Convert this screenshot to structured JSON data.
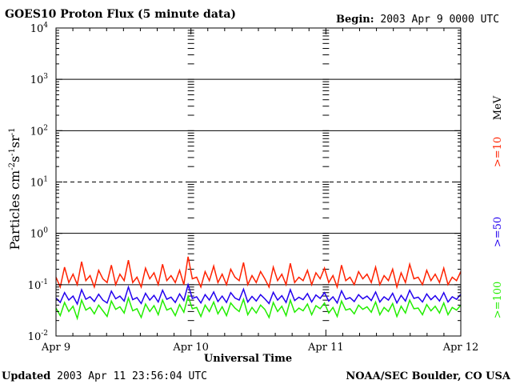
{
  "header": {
    "title_bold": "GOES10",
    "title_rest": " Proton Flux (5 minute data)",
    "begin_label": "Begin:",
    "begin_value": " 2003 Apr 9 0000 UTC"
  },
  "footer": {
    "updated_label": "Updated",
    "updated_value": " 2003 Apr 11 23:56:04 UTC",
    "credit": "NOAA/SEC Boulder, CO USA"
  },
  "legend": {
    "unit": "MeV",
    "channels": [
      {
        "label": ">=10",
        "color": "#ff2200"
      },
      {
        "label": ">=50",
        "color": "#2200ee"
      },
      {
        "label": ">=100",
        "color": "#22ee00"
      }
    ]
  },
  "chart_data": {
    "type": "line",
    "title": "GOES10 Proton Flux (5 minute data)",
    "xlabel": "Universal Time",
    "ylabel": "Particles cm-2s-1sr-1",
    "y_scale": "log",
    "ylim": [
      0.01,
      10000
    ],
    "xlim": [
      "2003-04-09",
      "2003-04-12"
    ],
    "x_ticks": [
      "Apr 9",
      "Apr 10",
      "Apr 11",
      "Apr 12"
    ],
    "y_ticks": [
      {
        "base": "10",
        "exp": "-2"
      },
      {
        "base": "10",
        "exp": "-1"
      },
      {
        "base": "10",
        "exp": "0"
      },
      {
        "base": "10",
        "exp": "1"
      },
      {
        "base": "10",
        "exp": "2"
      },
      {
        "base": "10",
        "exp": "3"
      },
      {
        "base": "10",
        "exp": "4"
      }
    ],
    "reference_lines": [
      {
        "value": 10,
        "style": "dashed"
      },
      {
        "value": 0.1,
        "style": "solid"
      }
    ],
    "series": [
      {
        "name": ">=10 MeV",
        "color": "#ff2200",
        "values": [
          0.14,
          0.09,
          0.22,
          0.11,
          0.16,
          0.1,
          0.28,
          0.12,
          0.15,
          0.09,
          0.19,
          0.13,
          0.11,
          0.24,
          0.1,
          0.16,
          0.12,
          0.3,
          0.11,
          0.14,
          0.09,
          0.21,
          0.13,
          0.17,
          0.1,
          0.25,
          0.12,
          0.15,
          0.11,
          0.19,
          0.1,
          0.35,
          0.13,
          0.14,
          0.09,
          0.18,
          0.12,
          0.23,
          0.11,
          0.16,
          0.1,
          0.2,
          0.14,
          0.12,
          0.27,
          0.1,
          0.15,
          0.11,
          0.18,
          0.13,
          0.09,
          0.22,
          0.12,
          0.16,
          0.1,
          0.26,
          0.11,
          0.14,
          0.12,
          0.19,
          0.1,
          0.17,
          0.13,
          0.21,
          0.11,
          0.15,
          0.09,
          0.24,
          0.12,
          0.14,
          0.1,
          0.18,
          0.13,
          0.16,
          0.11,
          0.22,
          0.1,
          0.15,
          0.12,
          0.2,
          0.09,
          0.17,
          0.11,
          0.25,
          0.13,
          0.14,
          0.1,
          0.19,
          0.12,
          0.16,
          0.11,
          0.21,
          0.1,
          0.14,
          0.12,
          0.18
        ]
      },
      {
        "name": ">=50 MeV",
        "color": "#2200ee",
        "values": [
          0.055,
          0.045,
          0.07,
          0.05,
          0.06,
          0.042,
          0.08,
          0.052,
          0.058,
          0.047,
          0.065,
          0.05,
          0.044,
          0.075,
          0.053,
          0.06,
          0.048,
          0.09,
          0.051,
          0.056,
          0.043,
          0.068,
          0.05,
          0.062,
          0.046,
          0.078,
          0.052,
          0.057,
          0.045,
          0.066,
          0.049,
          0.1,
          0.054,
          0.058,
          0.044,
          0.064,
          0.05,
          0.072,
          0.047,
          0.06,
          0.045,
          0.07,
          0.055,
          0.05,
          0.082,
          0.046,
          0.059,
          0.048,
          0.064,
          0.053,
          0.043,
          0.071,
          0.05,
          0.061,
          0.045,
          0.08,
          0.049,
          0.057,
          0.051,
          0.067,
          0.046,
          0.063,
          0.054,
          0.07,
          0.048,
          0.058,
          0.044,
          0.076,
          0.052,
          0.056,
          0.047,
          0.064,
          0.053,
          0.06,
          0.049,
          0.072,
          0.046,
          0.058,
          0.05,
          0.068,
          0.044,
          0.062,
          0.048,
          0.078,
          0.054,
          0.057,
          0.046,
          0.066,
          0.051,
          0.061,
          0.048,
          0.07,
          0.046,
          0.058,
          0.052,
          0.065
        ]
      },
      {
        "name": ">=100 MeV",
        "color": "#22ee00",
        "values": [
          0.035,
          0.025,
          0.045,
          0.03,
          0.038,
          0.022,
          0.05,
          0.032,
          0.036,
          0.027,
          0.04,
          0.031,
          0.024,
          0.048,
          0.033,
          0.037,
          0.028,
          0.055,
          0.031,
          0.034,
          0.023,
          0.042,
          0.03,
          0.039,
          0.026,
          0.05,
          0.032,
          0.035,
          0.025,
          0.041,
          0.029,
          0.06,
          0.034,
          0.036,
          0.024,
          0.04,
          0.03,
          0.046,
          0.027,
          0.037,
          0.025,
          0.044,
          0.035,
          0.03,
          0.052,
          0.026,
          0.036,
          0.028,
          0.04,
          0.033,
          0.023,
          0.045,
          0.03,
          0.038,
          0.025,
          0.05,
          0.029,
          0.035,
          0.031,
          0.042,
          0.026,
          0.039,
          0.034,
          0.044,
          0.028,
          0.036,
          0.024,
          0.048,
          0.032,
          0.034,
          0.027,
          0.04,
          0.033,
          0.037,
          0.029,
          0.046,
          0.026,
          0.036,
          0.03,
          0.043,
          0.024,
          0.038,
          0.028,
          0.05,
          0.034,
          0.035,
          0.026,
          0.041,
          0.031,
          0.038,
          0.028,
          0.044,
          0.026,
          0.036,
          0.032,
          0.04
        ]
      }
    ]
  }
}
